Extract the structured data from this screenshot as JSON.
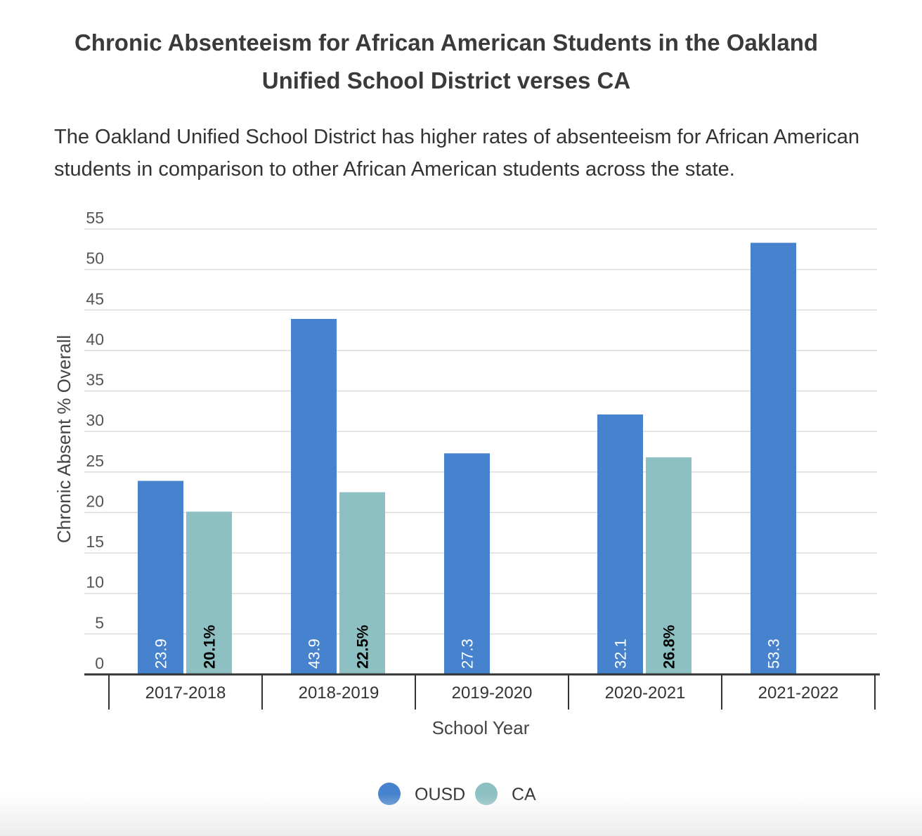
{
  "chart_data": {
    "type": "bar",
    "title": "Chronic Absenteeism for African American Students in  the Oakland Unified School District verses CA",
    "subtitle": "The Oakland Unified School District  has higher rates of absenteeism for African American students in comparison to other African American students across the state.",
    "categories": [
      "2017-2018",
      "2018-2019",
      "2019-2020",
      "2020-2021",
      "2021-2022"
    ],
    "series": [
      {
        "name": "OUSD",
        "color": "#4682cd",
        "values": [
          23.9,
          43.9,
          27.3,
          32.1,
          53.3
        ],
        "labels": [
          "23.9",
          "43.9",
          "27.3",
          "32.1",
          "53.3"
        ],
        "label_color": "#ffffff"
      },
      {
        "name": "CA",
        "color": "#8cc0c2",
        "values": [
          20.1,
          22.5,
          null,
          26.8,
          null
        ],
        "labels": [
          "20.1%",
          "22.5%",
          null,
          "26.8%",
          null
        ],
        "label_color": "#000000"
      }
    ],
    "xlabel": "School Year",
    "ylabel": "Chronic Absent % Overall",
    "ylim": [
      0,
      55
    ],
    "yticks": [
      0,
      5,
      10,
      15,
      20,
      25,
      30,
      35,
      40,
      45,
      50,
      55
    ],
    "grid": true,
    "legend_position": "bottom-center"
  }
}
